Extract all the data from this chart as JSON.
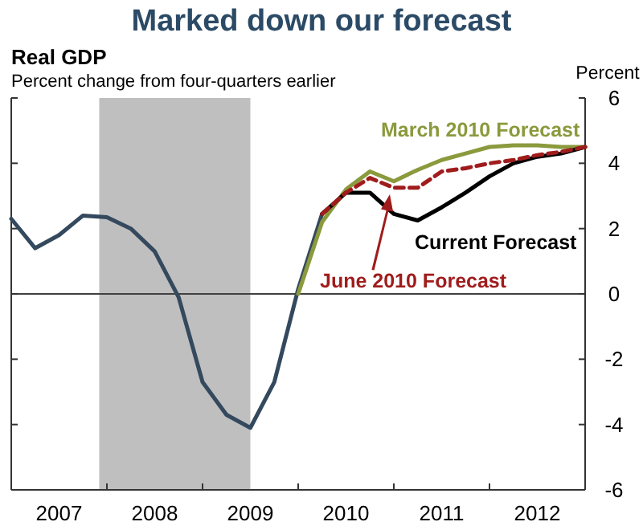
{
  "chart_data": {
    "type": "line",
    "title": "Marked down our forecast",
    "subtitle": "Real GDP",
    "ylabel": "Percent",
    "annotations": [
      "Percent change from four-quarters earlier"
    ],
    "xlim": [
      2007,
      2013
    ],
    "xticks": [
      {
        "value": 2007.5,
        "label": "2007"
      },
      {
        "value": 2008,
        "label": null
      },
      {
        "value": 2008.5,
        "label": "2008"
      },
      {
        "value": 2009,
        "label": null
      },
      {
        "value": 2009.5,
        "label": "2009"
      },
      {
        "value": 2010,
        "label": null
      },
      {
        "value": 2010.5,
        "label": "2010"
      },
      {
        "value": 2011,
        "label": null
      },
      {
        "value": 2011.5,
        "label": "2011"
      },
      {
        "value": 2012,
        "label": null
      },
      {
        "value": 2012.5,
        "label": "2012"
      },
      {
        "value": 2013,
        "label": null
      }
    ],
    "ylim": [
      -6,
      6
    ],
    "yticks": [
      -6,
      -4,
      -2,
      0,
      2,
      4,
      6
    ],
    "grid": false,
    "legend": false,
    "marker": "none",
    "bands": [
      {
        "axis": "x",
        "from": 2007.92,
        "to": 2009.5,
        "color": "#bfbfbf"
      }
    ],
    "ref_lines": [
      {
        "axis": "y",
        "value": 0,
        "color": "#404040"
      }
    ],
    "series": [
      {
        "color": "#34495e",
        "x": [
          2007,
          2007.25,
          2007.5,
          2007.75,
          2008,
          2008.25,
          2008.5,
          2008.75,
          2009,
          2009.25,
          2009.5,
          2009.75,
          2010,
          2010.25
        ],
        "values": [
          2.3,
          1.4,
          1.8,
          2.4,
          2.35,
          2.0,
          1.3,
          -0.1,
          -2.7,
          -3.7,
          -4.1,
          -2.7,
          0.15,
          2.45
        ]
      },
      {
        "name": "March 2010 Forecast",
        "color": "#8a9a3c",
        "x": [
          2010,
          2010.25,
          2010.5,
          2010.75,
          2011,
          2011.25,
          2011.5,
          2011.75,
          2012,
          2012.25,
          2012.5,
          2012.75,
          2013
        ],
        "values": [
          0,
          2.2,
          3.2,
          3.75,
          3.45,
          3.8,
          4.1,
          4.3,
          4.5,
          4.55,
          4.55,
          4.5,
          4.5
        ]
      },
      {
        "name": "Current Forecast",
        "color": "#000000",
        "x": [
          2010.25,
          2010.5,
          2010.75,
          2011,
          2011.25,
          2011.5,
          2011.75,
          2012,
          2012.25,
          2012.5,
          2012.75,
          2013
        ],
        "values": [
          2.45,
          3.1,
          3.1,
          2.45,
          2.25,
          2.65,
          3.1,
          3.6,
          4.0,
          4.2,
          4.3,
          4.5
        ]
      },
      {
        "name": "June 2010 Forecast",
        "color": "#a01c1c",
        "line_style": "dashed",
        "x": [
          2010.25,
          2010.5,
          2010.75,
          2011,
          2011.25,
          2011.5,
          2011.75,
          2012,
          2012.25,
          2012.5,
          2012.75,
          2013
        ],
        "values": [
          2.45,
          3.1,
          3.55,
          3.25,
          3.25,
          3.75,
          3.85,
          4.0,
          4.1,
          4.25,
          4.35,
          4.5
        ]
      }
    ]
  }
}
